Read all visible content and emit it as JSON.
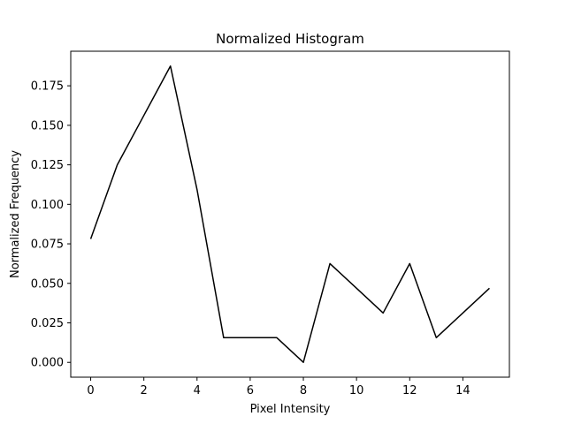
{
  "chart_data": {
    "type": "line",
    "title": "Normalized Histogram",
    "xlabel": "Pixel Intensity",
    "ylabel": "Normalized Frequency",
    "x": [
      0,
      1,
      2,
      3,
      4,
      5,
      6,
      7,
      8,
      9,
      10,
      11,
      12,
      13,
      14,
      15
    ],
    "series": [
      {
        "values": [
          0.078125,
          0.125,
          0.15625,
          0.1875,
          0.109375,
          0.015625,
          0.015625,
          0.015625,
          0.0,
          0.0625,
          0.046875,
          0.03125,
          0.0625,
          0.015625,
          0.03125,
          0.046875
        ]
      }
    ],
    "xlim": [
      -0.75,
      15.75
    ],
    "ylim": [
      -0.009375,
      0.196875
    ],
    "xticks": [
      0,
      2,
      4,
      6,
      8,
      10,
      12,
      14
    ],
    "xtick_labels": [
      "0",
      "2",
      "4",
      "6",
      "8",
      "10",
      "12",
      "14"
    ],
    "yticks": [
      0.0,
      0.025,
      0.05,
      0.075,
      0.1,
      0.125,
      0.15,
      0.175
    ],
    "ytick_labels": [
      "0.000",
      "0.025",
      "0.050",
      "0.075",
      "0.100",
      "0.125",
      "0.150",
      "0.175"
    ],
    "grid": false,
    "line_color": "#000000"
  }
}
